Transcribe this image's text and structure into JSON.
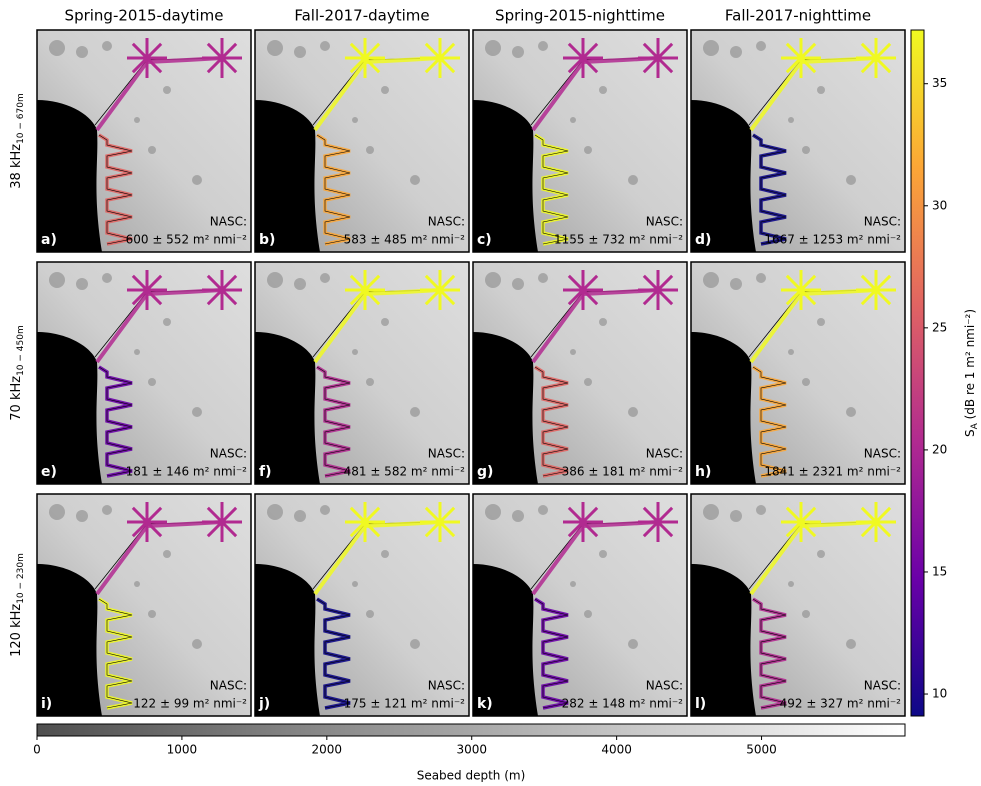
{
  "chart_data": {
    "type": "map-grid",
    "column_titles": [
      "Spring-2015-daytime",
      "Fall-2017-daytime",
      "Spring-2015-nighttime",
      "Fall-2017-nighttime"
    ],
    "row_labels": [
      {
        "main": "38 kHz",
        "sub": "10 − 670m"
      },
      {
        "main": "70 kHz",
        "sub": "10 − 450m"
      },
      {
        "main": "120 kHz",
        "sub": "10 − 230m"
      }
    ],
    "nasc_label": "NASC:",
    "panels": [
      {
        "letter": "a)",
        "nasc": "600 ± 552 m² nmi⁻²"
      },
      {
        "letter": "b)",
        "nasc": "583 ± 485 m² nmi⁻²"
      },
      {
        "letter": "c)",
        "nasc": "1155 ± 732 m² nmi⁻²"
      },
      {
        "letter": "d)",
        "nasc": "1667 ± 1253 m² nmi⁻²"
      },
      {
        "letter": "e)",
        "nasc": "181 ± 146 m² nmi⁻²"
      },
      {
        "letter": "f)",
        "nasc": "481 ± 582 m² nmi⁻²"
      },
      {
        "letter": "g)",
        "nasc": "386 ± 181 m² nmi⁻²"
      },
      {
        "letter": "h)",
        "nasc": "1841 ± 2321 m² nmi⁻²"
      },
      {
        "letter": "i)",
        "nasc": "122 ± 99 m² nmi⁻²"
      },
      {
        "letter": "j)",
        "nasc": "175 ± 121 m² nmi⁻²"
      },
      {
        "letter": "k)",
        "nasc": "282 ± 148 m² nmi⁻²"
      },
      {
        "letter": "l)",
        "nasc": "492 ± 327 m² nmi⁻²"
      }
    ],
    "colorbar": {
      "label_main": "S",
      "label_sub": "A",
      "label_rest": " (dB re 1 m² nmi⁻²)",
      "ylim": [
        9.1,
        37.2
      ],
      "yticks": [
        10,
        15,
        20,
        25,
        30,
        35
      ],
      "colors": [
        "#0d0887",
        "#6a00a8",
        "#b12a90",
        "#e16462",
        "#fca636",
        "#f0f921"
      ]
    },
    "depth_bar": {
      "label": "Seabed depth (m)",
      "xlim": [
        0,
        5990
      ],
      "xticks": [
        0,
        1000,
        2000,
        3000,
        4000,
        5000
      ],
      "colors": [
        "#4f4f4f",
        "#ffffff"
      ]
    }
  }
}
